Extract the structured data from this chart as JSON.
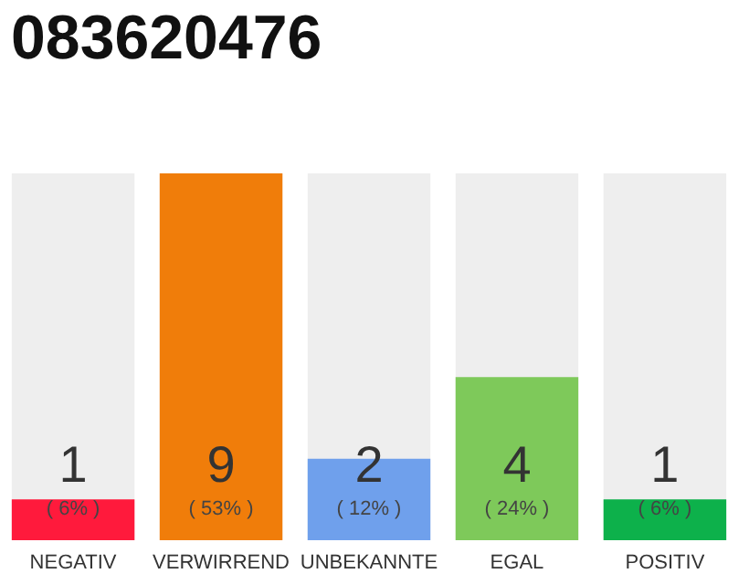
{
  "chart_data": {
    "type": "bar",
    "title": "083620476",
    "categories": [
      "NEGATIV",
      "VERWIRREND",
      "UNBEKANNTE",
      "EGAL",
      "POSITIV"
    ],
    "values": [
      1,
      9,
      2,
      4,
      1
    ],
    "colors": [
      "#ff1a3c",
      "#f07d0a",
      "#6fa0ec",
      "#7ec95a",
      "#0db14b"
    ],
    "ylim": [
      0,
      9
    ],
    "tick_labels": "x",
    "data_labels": true,
    "annotations": [
      "( 6% )",
      "( 53% )",
      "( 12% )",
      "( 24% )",
      "( 6% )"
    ]
  }
}
